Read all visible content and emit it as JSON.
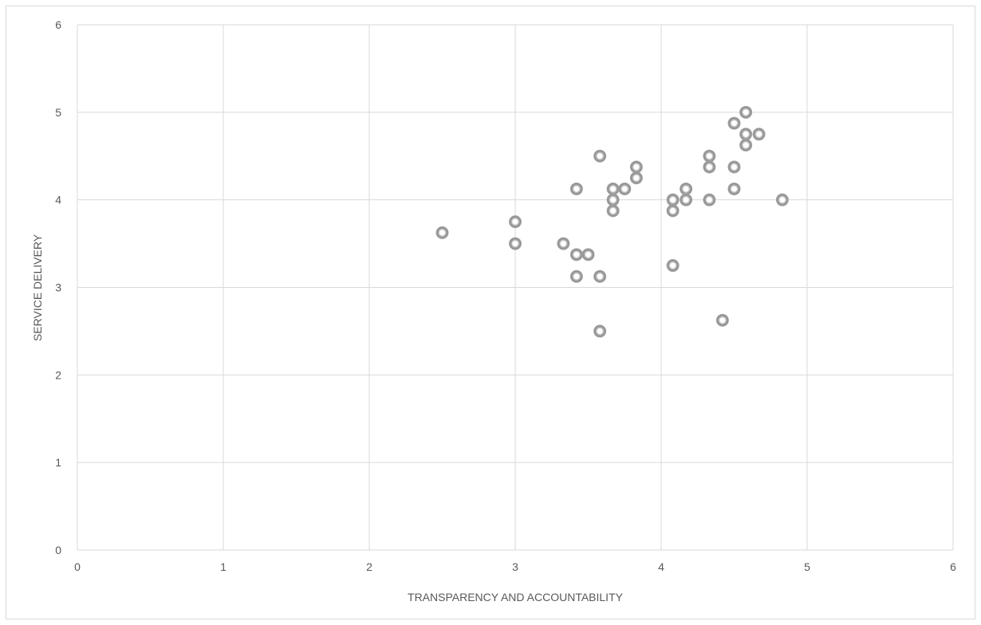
{
  "chart_data": {
    "type": "scatter",
    "title": "",
    "xlabel": "TRANSPARENCY AND ACCOUNTABILITY",
    "ylabel": "SERVICE DELIVERY",
    "xlim": [
      0,
      6
    ],
    "ylim": [
      0,
      6
    ],
    "x_ticks": [
      0,
      1,
      2,
      3,
      4,
      5,
      6
    ],
    "y_ticks": [
      0,
      1,
      2,
      3,
      4,
      5,
      6
    ],
    "grid": true,
    "legend": "none",
    "marker_color": "#a6a6a6",
    "grid_color": "#d9d9d9",
    "points": [
      {
        "x": 2.5,
        "y": 3.625
      },
      {
        "x": 3.0,
        "y": 3.75
      },
      {
        "x": 3.0,
        "y": 3.5
      },
      {
        "x": 3.33,
        "y": 3.5
      },
      {
        "x": 3.42,
        "y": 4.125
      },
      {
        "x": 3.42,
        "y": 3.375
      },
      {
        "x": 3.5,
        "y": 3.375
      },
      {
        "x": 3.42,
        "y": 3.125
      },
      {
        "x": 3.58,
        "y": 3.125
      },
      {
        "x": 3.58,
        "y": 4.5
      },
      {
        "x": 3.58,
        "y": 2.5
      },
      {
        "x": 3.67,
        "y": 4.125
      },
      {
        "x": 3.67,
        "y": 4.0
      },
      {
        "x": 3.67,
        "y": 3.875
      },
      {
        "x": 3.75,
        "y": 4.125
      },
      {
        "x": 3.83,
        "y": 4.375
      },
      {
        "x": 3.83,
        "y": 4.25
      },
      {
        "x": 4.08,
        "y": 4.0
      },
      {
        "x": 4.08,
        "y": 3.875
      },
      {
        "x": 4.08,
        "y": 3.25
      },
      {
        "x": 4.17,
        "y": 4.125
      },
      {
        "x": 4.17,
        "y": 4.0
      },
      {
        "x": 4.33,
        "y": 4.5
      },
      {
        "x": 4.33,
        "y": 4.375
      },
      {
        "x": 4.33,
        "y": 4.0
      },
      {
        "x": 4.42,
        "y": 2.625
      },
      {
        "x": 4.5,
        "y": 4.875
      },
      {
        "x": 4.5,
        "y": 4.375
      },
      {
        "x": 4.5,
        "y": 4.125
      },
      {
        "x": 4.58,
        "y": 5.0
      },
      {
        "x": 4.58,
        "y": 4.75
      },
      {
        "x": 4.58,
        "y": 4.625
      },
      {
        "x": 4.67,
        "y": 4.75
      },
      {
        "x": 4.83,
        "y": 4.0
      }
    ]
  }
}
